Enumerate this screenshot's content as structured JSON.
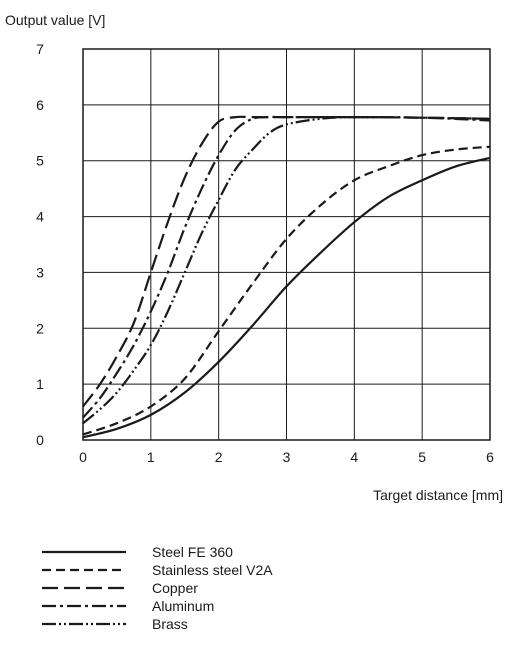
{
  "chart_data": {
    "type": "line",
    "ylabel": "Output value [V]",
    "xlabel": "Target distance [mm]",
    "xlim": [
      0,
      6
    ],
    "ylim": [
      0,
      7
    ],
    "xticks": [
      "0",
      "1",
      "2",
      "3",
      "4",
      "5",
      "6"
    ],
    "yticks": [
      "0",
      "1",
      "2",
      "3",
      "4",
      "5",
      "6",
      "7"
    ],
    "grid": true,
    "legend_position": "bottom",
    "series": [
      {
        "name": "Steel FE 360",
        "dash": "solid",
        "x": [
          0,
          0.5,
          1,
          1.5,
          2,
          2.5,
          3,
          3.5,
          4,
          4.5,
          5,
          5.5,
          6
        ],
        "y": [
          0.05,
          0.2,
          0.45,
          0.85,
          1.4,
          2.05,
          2.75,
          3.35,
          3.9,
          4.35,
          4.65,
          4.9,
          5.05
        ]
      },
      {
        "name": "Stainless steel V2A",
        "dash": "short-dash",
        "x": [
          0,
          0.5,
          1,
          1.5,
          2,
          2.5,
          3,
          3.5,
          4,
          4.5,
          5,
          5.5,
          6
        ],
        "y": [
          0.1,
          0.3,
          0.6,
          1.1,
          1.95,
          2.8,
          3.6,
          4.2,
          4.65,
          4.9,
          5.1,
          5.2,
          5.25
        ]
      },
      {
        "name": "Copper",
        "dash": "long-dash",
        "x": [
          0,
          0.25,
          0.5,
          0.75,
          1,
          1.25,
          1.5,
          1.75,
          2,
          2.25,
          2.5,
          3,
          4,
          5,
          6
        ],
        "y": [
          0.6,
          1.0,
          1.5,
          2.1,
          3.0,
          3.9,
          4.7,
          5.3,
          5.7,
          5.78,
          5.78,
          5.78,
          5.78,
          5.77,
          5.75
        ]
      },
      {
        "name": "Aluminum",
        "dash": "dash-dot",
        "x": [
          0,
          0.25,
          0.5,
          0.75,
          1,
          1.25,
          1.5,
          1.75,
          2,
          2.25,
          2.5,
          2.75,
          3,
          4,
          5,
          6
        ],
        "y": [
          0.4,
          0.75,
          1.2,
          1.7,
          2.3,
          3.0,
          3.8,
          4.5,
          5.1,
          5.55,
          5.75,
          5.78,
          5.78,
          5.78,
          5.77,
          5.72
        ]
      },
      {
        "name": "Brass",
        "dash": "dash-dot-dot",
        "x": [
          0,
          0.25,
          0.5,
          0.75,
          1,
          1.25,
          1.5,
          1.75,
          2,
          2.25,
          2.5,
          2.75,
          3,
          3.5,
          4,
          5,
          6
        ],
        "y": [
          0.3,
          0.55,
          0.85,
          1.25,
          1.7,
          2.3,
          3.0,
          3.7,
          4.3,
          4.85,
          5.2,
          5.5,
          5.65,
          5.75,
          5.78,
          5.77,
          5.75
        ]
      }
    ]
  }
}
